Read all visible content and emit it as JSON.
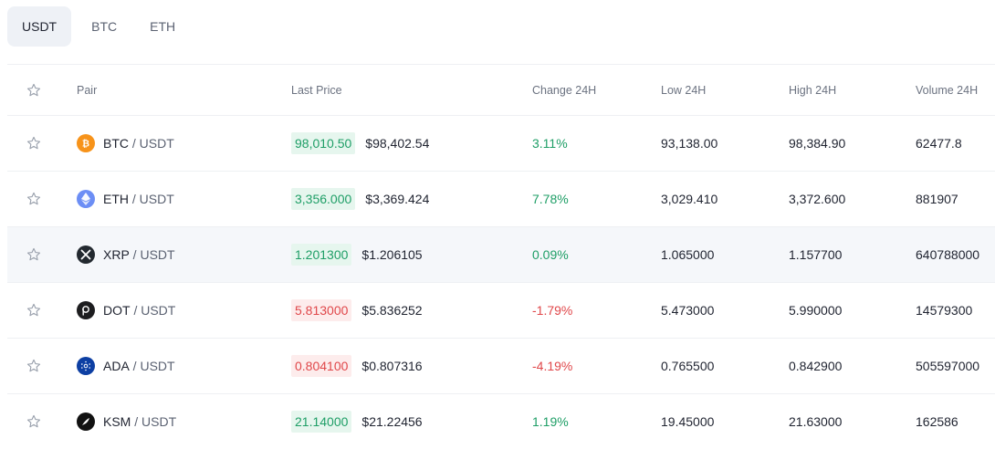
{
  "tabs": [
    {
      "label": "USDT",
      "active": true
    },
    {
      "label": "BTC",
      "active": false
    },
    {
      "label": "ETH",
      "active": false
    }
  ],
  "headers": {
    "pair": "Pair",
    "last_price": "Last Price",
    "change": "Change 24H",
    "low": "Low 24H",
    "high": "High 24H",
    "volume": "Volume 24H"
  },
  "colors": {
    "up": "#1e9e66",
    "down": "#e0474a",
    "highlight_row": "#f5f7fa"
  },
  "rows": [
    {
      "icon": "btc-icon",
      "base": "BTC",
      "sep": " / ",
      "quote": "USDT",
      "price": "98,010.50",
      "usd": "$98,402.54",
      "change": "3.11%",
      "direction": "up",
      "low": "93,138.00",
      "high": "98,384.90",
      "volume": "62477.8"
    },
    {
      "icon": "eth-icon",
      "base": "ETH",
      "sep": " / ",
      "quote": "USDT",
      "price": "3,356.000",
      "usd": "$3,369.424",
      "change": "7.78%",
      "direction": "up",
      "low": "3,029.410",
      "high": "3,372.600",
      "volume": "881907"
    },
    {
      "icon": "xrp-icon",
      "base": "XRP",
      "sep": " / ",
      "quote": "USDT",
      "price": "1.201300",
      "usd": "$1.206105",
      "change": "0.09%",
      "direction": "up",
      "low": "1.065000",
      "high": "1.157700",
      "volume": "640788000",
      "highlighted": true
    },
    {
      "icon": "dot-icon",
      "base": "DOT",
      "sep": " / ",
      "quote": "USDT",
      "price": "5.813000",
      "usd": "$5.836252",
      "change": "-1.79%",
      "direction": "down",
      "low": "5.473000",
      "high": "5.990000",
      "volume": "14579300"
    },
    {
      "icon": "ada-icon",
      "base": "ADA",
      "sep": " / ",
      "quote": "USDT",
      "price": "0.804100",
      "usd": "$0.807316",
      "change": "-4.19%",
      "direction": "down",
      "low": "0.765500",
      "high": "0.842900",
      "volume": "505597000"
    },
    {
      "icon": "ksm-icon",
      "base": "KSM",
      "sep": " / ",
      "quote": "USDT",
      "price": "21.14000",
      "usd": "$21.22456",
      "change": "1.19%",
      "direction": "up",
      "low": "19.45000",
      "high": "21.63000",
      "volume": "162586"
    }
  ]
}
